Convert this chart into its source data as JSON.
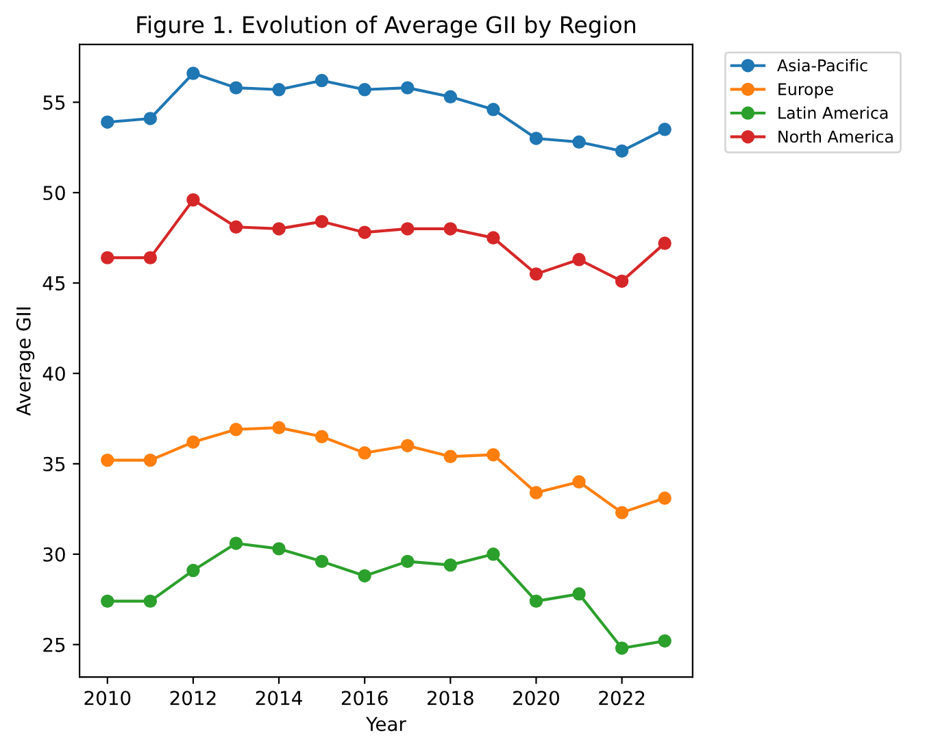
{
  "chart_data": {
    "type": "line",
    "title": "Figure 1. Evolution of Average GII by Region",
    "xlabel": "Year",
    "ylabel": "Average GII",
    "x": [
      2010,
      2011,
      2012,
      2013,
      2014,
      2015,
      2016,
      2017,
      2018,
      2019,
      2020,
      2021,
      2022,
      2023
    ],
    "series": [
      {
        "name": "Asia-Pacific",
        "color": "#1f77b4",
        "values": [
          53.9,
          54.1,
          56.6,
          55.8,
          55.7,
          56.2,
          55.7,
          55.8,
          55.3,
          54.6,
          53.0,
          52.8,
          52.3,
          53.5
        ]
      },
      {
        "name": "Europe",
        "color": "#ff7f0e",
        "values": [
          35.2,
          35.2,
          36.2,
          36.9,
          37.0,
          36.5,
          35.6,
          36.0,
          35.4,
          35.5,
          33.4,
          34.0,
          32.3,
          33.1
        ]
      },
      {
        "name": "Latin America",
        "color": "#2ca02c",
        "values": [
          27.4,
          27.4,
          29.1,
          30.6,
          30.3,
          29.6,
          28.8,
          29.6,
          29.4,
          30.0,
          27.4,
          27.8,
          24.8,
          25.2
        ]
      },
      {
        "name": "North America",
        "color": "#d62728",
        "values": [
          46.4,
          46.4,
          49.6,
          48.1,
          48.0,
          48.4,
          47.8,
          48.0,
          48.0,
          47.5,
          45.5,
          46.3,
          45.1,
          47.2
        ]
      }
    ],
    "xlim": [
      2009.35,
      2023.65
    ],
    "ylim": [
      23.2,
      58.2
    ],
    "xticks": [
      2010,
      2012,
      2014,
      2016,
      2018,
      2020,
      2022
    ],
    "yticks": [
      25,
      30,
      35,
      40,
      45,
      50,
      55
    ],
    "grid": false,
    "legend": "top right",
    "marker": "circle",
    "line_style": "solid"
  }
}
